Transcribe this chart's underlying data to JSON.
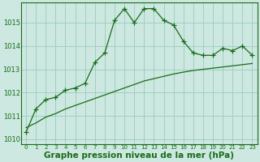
{
  "x": [
    0,
    1,
    2,
    3,
    4,
    5,
    6,
    7,
    8,
    9,
    10,
    11,
    12,
    13,
    14,
    15,
    16,
    17,
    18,
    19,
    20,
    21,
    22,
    23
  ],
  "line1": [
    1010.3,
    1011.3,
    1011.7,
    1011.8,
    1012.1,
    1012.2,
    1012.4,
    1013.3,
    1013.7,
    1015.1,
    1015.6,
    1015.0,
    1015.6,
    1015.6,
    1015.1,
    1014.9,
    1014.2,
    1013.7,
    1013.6,
    1013.6,
    1013.9,
    1013.8,
    1014.0,
    1013.6
  ],
  "line2": [
    1010.5,
    1010.7,
    1010.95,
    1011.1,
    1011.3,
    1011.45,
    1011.6,
    1011.75,
    1011.9,
    1012.05,
    1012.2,
    1012.35,
    1012.5,
    1012.6,
    1012.7,
    1012.8,
    1012.88,
    1012.95,
    1013.0,
    1013.05,
    1013.1,
    1013.15,
    1013.2,
    1013.25
  ],
  "ylim": [
    1009.8,
    1015.85
  ],
  "yticks": [
    1010,
    1011,
    1012,
    1013,
    1014,
    1015
  ],
  "xlim": [
    -0.5,
    23.5
  ],
  "xticks": [
    0,
    1,
    2,
    3,
    4,
    5,
    6,
    7,
    8,
    9,
    10,
    11,
    12,
    13,
    14,
    15,
    16,
    17,
    18,
    19,
    20,
    21,
    22,
    23
  ],
  "line_color": "#1a6b1a",
  "bg_color": "#cce8e0",
  "grid_color": "#99ccbb",
  "xlabel": "Graphe pression niveau de la mer (hPa)",
  "xlabel_fontsize": 7.5,
  "marker": "+",
  "marker_size": 4
}
